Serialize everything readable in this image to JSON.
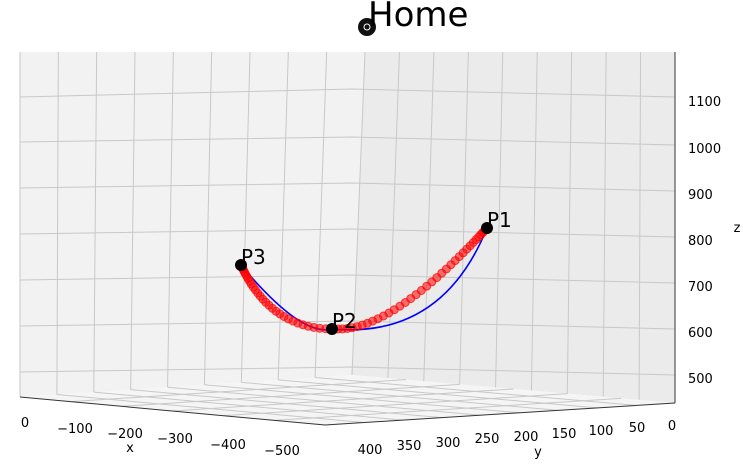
{
  "chart_data": {
    "type": "scatter",
    "title": "Home",
    "xlabel": "x",
    "ylabel": "y",
    "zlabel": "z",
    "xlim": [
      -500,
      0
    ],
    "ylim": [
      0,
      400
    ],
    "zlim": [
      450,
      1200
    ],
    "x_ticks": [
      "0",
      "−100",
      "−200",
      "−300",
      "−400",
      "−500"
    ],
    "y_ticks": [
      "400",
      "350",
      "300",
      "250",
      "200",
      "150",
      "100",
      "50",
      "0"
    ],
    "z_ticks": [
      "500",
      "600",
      "700",
      "800",
      "900",
      "1000",
      "1100"
    ],
    "points": [
      {
        "label": "P1",
        "x": 0,
        "y": 250,
        "z": 820
      },
      {
        "label": "P2",
        "x": -250,
        "y": 230,
        "z": 600
      },
      {
        "label": "P3",
        "x": -260,
        "y": 380,
        "z": 740
      }
    ],
    "series": [
      {
        "type": "line",
        "color": "#0000ff"
      },
      {
        "type": "scatter",
        "color": "#ff0000"
      }
    ],
    "grid": true,
    "legend": "none"
  }
}
